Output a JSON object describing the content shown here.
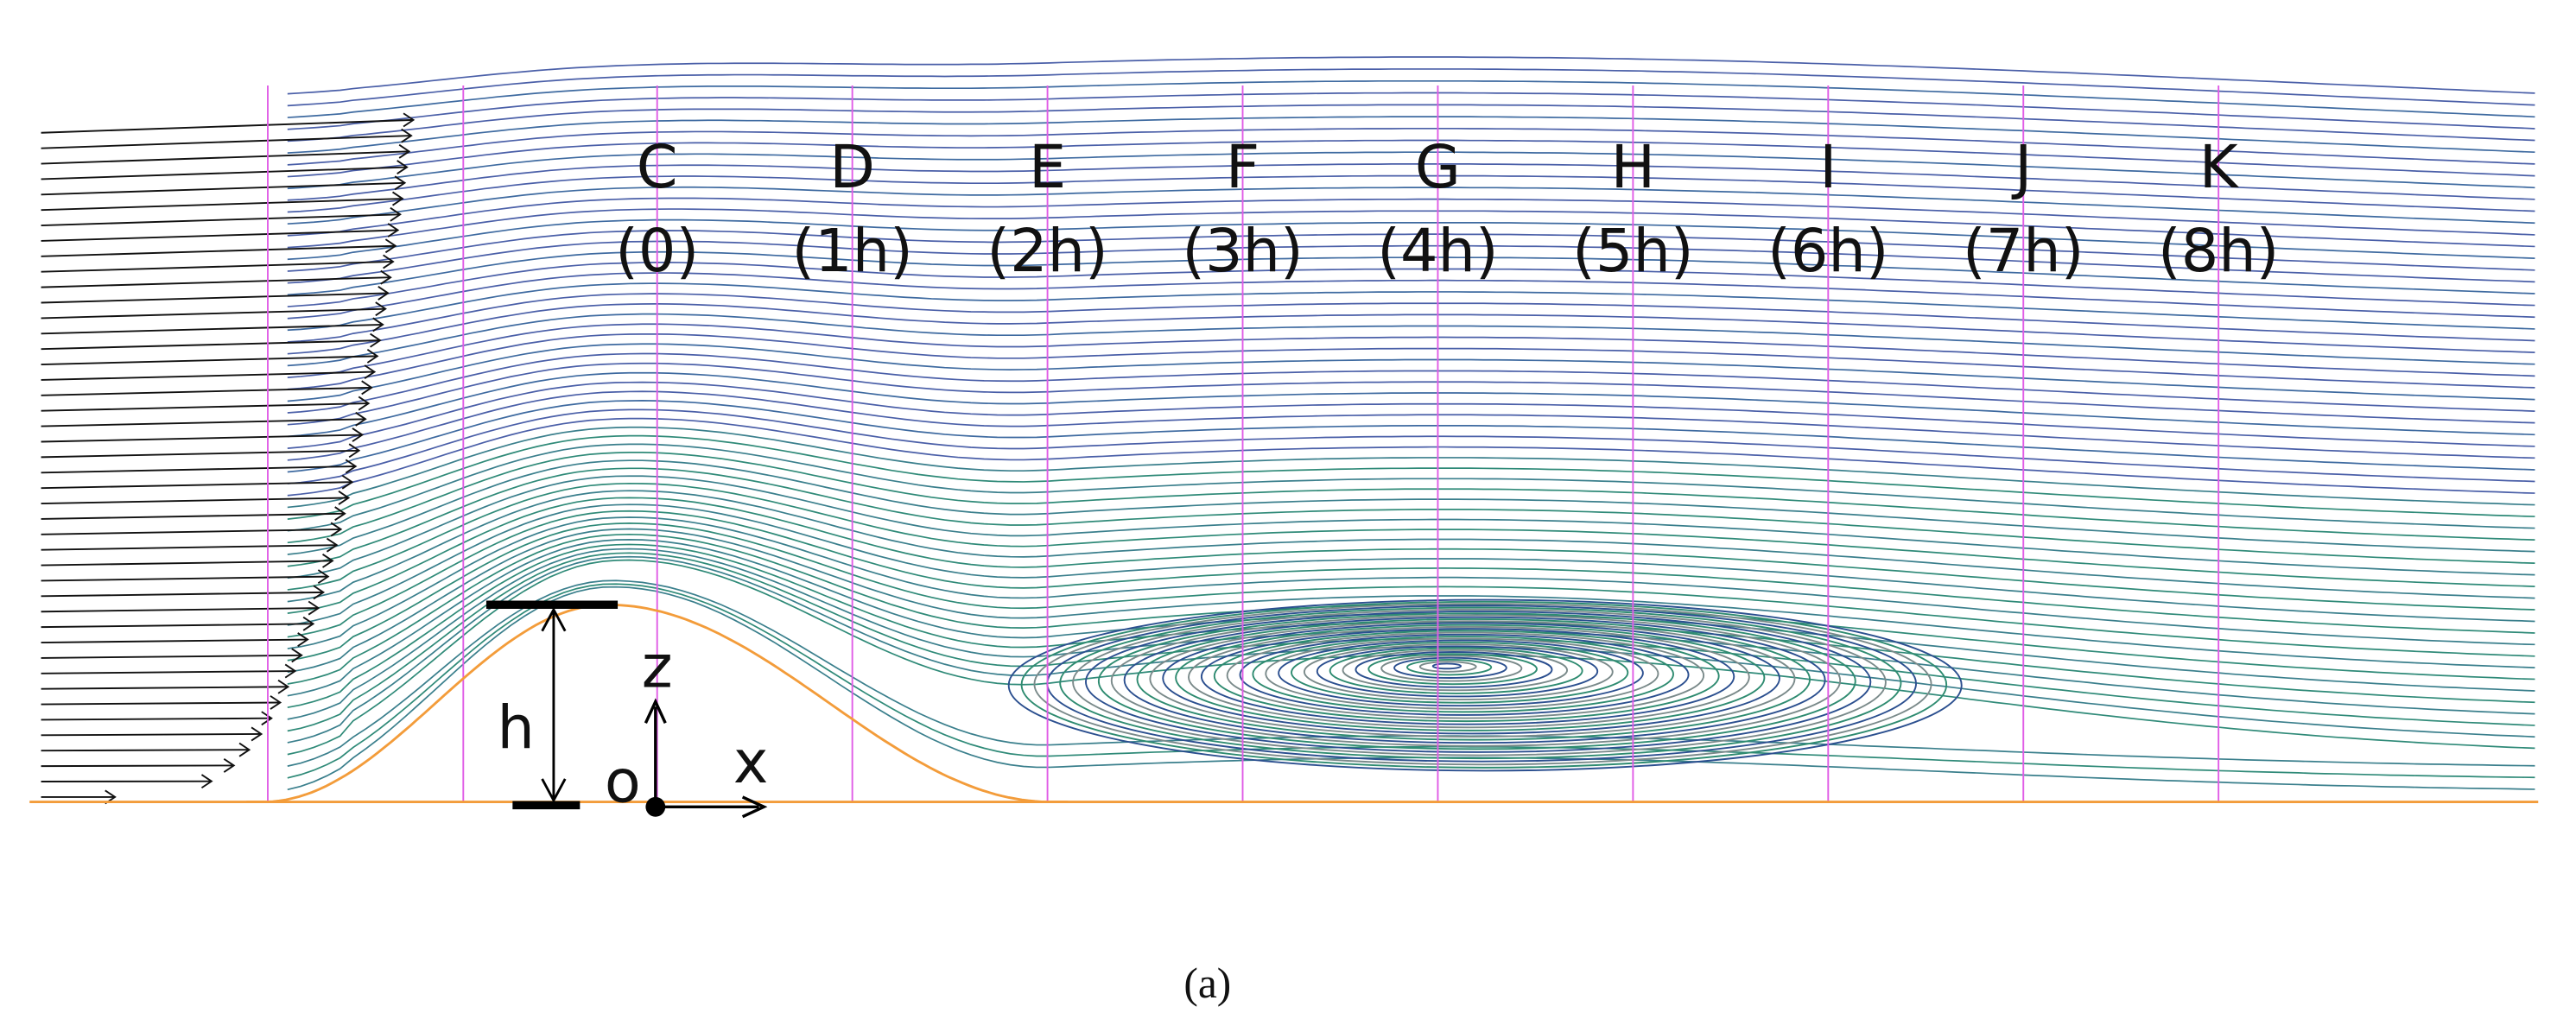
{
  "stations": [
    {
      "label": "C",
      "position": "(0)"
    },
    {
      "label": "D",
      "position": "(1h)"
    },
    {
      "label": "E",
      "position": "(2h)"
    },
    {
      "label": "F",
      "position": "(3h)"
    },
    {
      "label": "G",
      "position": "(4h)"
    },
    {
      "label": "H",
      "position": "(5h)"
    },
    {
      "label": "I",
      "position": "(6h)"
    },
    {
      "label": "J",
      "position": "(7h)"
    },
    {
      "label": "K",
      "position": "(8h)"
    }
  ],
  "annotations": {
    "height": "h",
    "z_axis": "z",
    "x_axis": "x",
    "origin": "o"
  },
  "caption": "(a)"
}
